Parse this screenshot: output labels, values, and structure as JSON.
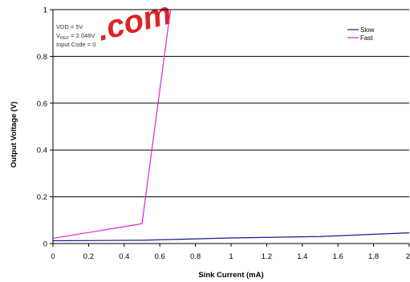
{
  "chart_data": {
    "type": "line",
    "xlabel": "Sink Current (mA)",
    "ylabel": "Output Voltage (V)",
    "xlim": [
      0,
      2
    ],
    "ylim": [
      0,
      1
    ],
    "xticks": [
      0,
      0.2,
      0.4,
      0.6,
      0.8,
      1,
      1.2,
      1.4,
      1.6,
      1.8,
      2
    ],
    "xtick_labels": [
      "0",
      "0.2",
      "0.4",
      "0.6",
      "0.8",
      "1",
      "1.2",
      "1.4",
      "1.6",
      "1.8",
      "2"
    ],
    "yticks": [
      0,
      0.2,
      0.4,
      0.6,
      0.8,
      1
    ],
    "ytick_labels": [
      "0",
      "0.2",
      "0.4",
      "0.6",
      "0.8",
      "1"
    ],
    "grid": "horizontal",
    "legend": "top-right",
    "annotations": {
      "vdd": "VDD = 5V",
      "vref_main": "V",
      "vref_sub": "REF",
      "vref_value": " = 2.048V",
      "input_code": "Input Code = 0"
    },
    "watermark": ".com",
    "series": [
      {
        "name": "Slow",
        "color": "#1a1a8c",
        "x": [
          0,
          0.5,
          1,
          1.5,
          2
        ],
        "y": [
          0.012,
          0.014,
          0.024,
          0.03,
          0.046
        ]
      },
      {
        "name": "Fast",
        "color": "#e020e0",
        "x": [
          0,
          0.5,
          0.66
        ],
        "y": [
          0.022,
          0.085,
          1.0
        ]
      }
    ]
  }
}
